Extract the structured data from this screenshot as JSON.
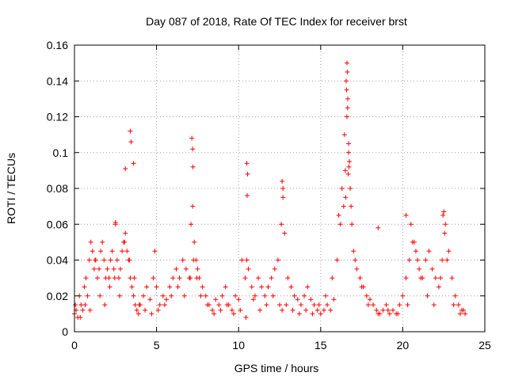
{
  "chart_data": {
    "type": "scatter",
    "title": "Day 087 of 2018, Rate Of TEC Index for receiver brst",
    "xlabel": "GPS time / hours",
    "ylabel": "ROTI / TECUs",
    "xlim": [
      0,
      25
    ],
    "ylim": [
      0,
      0.16
    ],
    "xticks": [
      0,
      5,
      10,
      15,
      20,
      25
    ],
    "yticks": [
      0,
      0.02,
      0.04,
      0.06,
      0.08,
      0.1,
      0.12,
      0.14,
      0.16
    ],
    "xtick_labels": [
      "0",
      "5",
      "10",
      "15",
      "20",
      "25"
    ],
    "ytick_labels": [
      "0",
      "0.02",
      "0.04",
      "0.06",
      "0.08",
      "0.1",
      "0.12",
      "0.14",
      "0.16"
    ],
    "grid": true,
    "marker": "+",
    "series_color": "#ff0000",
    "series": [
      {
        "x": [
          0.0,
          0.1,
          0.2,
          0.3,
          0.4,
          0.5,
          0.6,
          0.7,
          0.8,
          0.9,
          1.0,
          1.1,
          1.2,
          1.3,
          1.4,
          1.5,
          1.6,
          1.7,
          1.8,
          1.9,
          2.0,
          2.1,
          2.2,
          2.3,
          2.4,
          2.5,
          2.6,
          2.7,
          2.8,
          2.9,
          3.0,
          3.1,
          3.2,
          3.3,
          3.4,
          3.5,
          3.6,
          3.7,
          3.8,
          3.9,
          4.0,
          4.2,
          4.4,
          4.6,
          4.8,
          4.9,
          5.0,
          5.2,
          5.4,
          5.6,
          5.8,
          6.0,
          6.2,
          6.4,
          6.6,
          6.8,
          7.0,
          7.1,
          7.2,
          7.3,
          7.4,
          7.5,
          7.6,
          7.8,
          8.0,
          8.2,
          8.4,
          8.6,
          8.8,
          9.0,
          9.2,
          9.4,
          9.6,
          9.8,
          10.0,
          10.2,
          10.4,
          10.5,
          10.6,
          10.8,
          11.0,
          11.2,
          11.4,
          11.6,
          11.8,
          12.0,
          12.2,
          12.4,
          12.6,
          12.7,
          12.8,
          13.0,
          13.2,
          13.4,
          13.6,
          13.8,
          14.0,
          14.2,
          14.4,
          14.6,
          14.8,
          15.0,
          15.2,
          15.4,
          15.6,
          15.8,
          16.0,
          16.2,
          16.4,
          16.5,
          16.6,
          16.7,
          16.8,
          16.9,
          17.0,
          17.2,
          17.4,
          17.6,
          17.8,
          18.0,
          18.2,
          18.4,
          18.6,
          18.8,
          19.0,
          19.2,
          19.4,
          19.6,
          19.8,
          20.0,
          20.2,
          20.4,
          20.6,
          20.8,
          21.0,
          21.2,
          21.4,
          21.6,
          21.8,
          22.0,
          22.2,
          22.4,
          22.6,
          22.8,
          23.0,
          23.2,
          23.4,
          23.6,
          23.8,
          0.05,
          0.35,
          0.65,
          0.95,
          1.25,
          1.55,
          1.85,
          2.15,
          2.45,
          2.75,
          3.05,
          3.35,
          3.65,
          3.95,
          4.3,
          4.7,
          5.1,
          5.5,
          5.9,
          6.3,
          6.7,
          7.05,
          7.25,
          7.45,
          7.7,
          8.1,
          8.5,
          8.9,
          9.3,
          9.7,
          10.1,
          10.45,
          10.9,
          11.3,
          11.7,
          12.1,
          12.5,
          12.65,
          12.9,
          13.3,
          13.7,
          14.1,
          14.5,
          14.9,
          15.3,
          15.7,
          16.1,
          16.3,
          16.45,
          16.55,
          16.65,
          16.75,
          16.85,
          17.1,
          17.5,
          17.9,
          18.5,
          19.1,
          19.7,
          20.3,
          20.5,
          20.7,
          20.9,
          21.1,
          21.5,
          21.9,
          22.3,
          22.45,
          22.55,
          22.7,
          23.1,
          23.5,
          23.7,
          16.6,
          16.62,
          16.58,
          16.64,
          16.7,
          16.52,
          16.68,
          16.72,
          3.4,
          3.45,
          3.1,
          3.6,
          7.15,
          7.2,
          7.22,
          10.5,
          10.55,
          10.52,
          12.65,
          12.7,
          18.5,
          2.5,
          22.5,
          20.2
        ],
        "y": [
          0.01,
          0.012,
          0.008,
          0.02,
          0.015,
          0.012,
          0.025,
          0.03,
          0.02,
          0.04,
          0.05,
          0.045,
          0.035,
          0.04,
          0.03,
          0.035,
          0.045,
          0.05,
          0.04,
          0.03,
          0.035,
          0.03,
          0.04,
          0.045,
          0.035,
          0.06,
          0.04,
          0.03,
          0.035,
          0.045,
          0.05,
          0.055,
          0.045,
          0.04,
          0.03,
          0.025,
          0.02,
          0.015,
          0.012,
          0.01,
          0.015,
          0.02,
          0.025,
          0.018,
          0.03,
          0.045,
          0.025,
          0.015,
          0.02,
          0.018,
          0.025,
          0.03,
          0.035,
          0.03,
          0.04,
          0.035,
          0.03,
          0.06,
          0.07,
          0.05,
          0.04,
          0.035,
          0.03,
          0.025,
          0.02,
          0.015,
          0.012,
          0.018,
          0.015,
          0.02,
          0.025,
          0.015,
          0.012,
          0.02,
          0.018,
          0.04,
          0.03,
          0.04,
          0.035,
          0.025,
          0.02,
          0.03,
          0.025,
          0.02,
          0.025,
          0.03,
          0.035,
          0.04,
          0.06,
          0.075,
          0.055,
          0.03,
          0.025,
          0.02,
          0.018,
          0.015,
          0.02,
          0.025,
          0.018,
          0.015,
          0.012,
          0.01,
          0.012,
          0.015,
          0.012,
          0.018,
          0.04,
          0.06,
          0.07,
          0.09,
          0.12,
          0.1,
          0.08,
          0.06,
          0.045,
          0.035,
          0.03,
          0.025,
          0.02,
          0.018,
          0.015,
          0.012,
          0.01,
          0.012,
          0.015,
          0.01,
          0.012,
          0.01,
          0.015,
          0.02,
          0.03,
          0.04,
          0.05,
          0.045,
          0.035,
          0.03,
          0.04,
          0.045,
          0.035,
          0.03,
          0.025,
          0.04,
          0.06,
          0.045,
          0.03,
          0.02,
          0.015,
          0.012,
          0.01,
          0.015,
          0.008,
          0.015,
          0.012,
          0.04,
          0.02,
          0.015,
          0.025,
          0.03,
          0.02,
          0.05,
          0.04,
          0.03,
          0.015,
          0.012,
          0.01,
          0.012,
          0.015,
          0.02,
          0.025,
          0.02,
          0.03,
          0.04,
          0.03,
          0.02,
          0.015,
          0.01,
          0.012,
          0.015,
          0.01,
          0.012,
          0.008,
          0.018,
          0.012,
          0.015,
          0.02,
          0.015,
          0.012,
          0.015,
          0.012,
          0.01,
          0.012,
          0.01,
          0.015,
          0.02,
          0.03,
          0.065,
          0.08,
          0.11,
          0.14,
          0.13,
          0.095,
          0.07,
          0.04,
          0.025,
          0.015,
          0.01,
          0.012,
          0.01,
          0.015,
          0.06,
          0.05,
          0.04,
          0.03,
          0.02,
          0.015,
          0.03,
          0.065,
          0.055,
          0.04,
          0.015,
          0.01,
          0.012,
          0.15,
          0.145,
          0.135,
          0.125,
          0.105,
          0.075,
          0.088,
          0.092,
          0.112,
          0.106,
          0.091,
          0.094,
          0.108,
          0.102,
          0.092,
          0.094,
          0.088,
          0.076,
          0.084,
          0.08,
          0.058,
          0.061,
          0.067,
          0.065
        ],
        "name": ""
      }
    ]
  }
}
